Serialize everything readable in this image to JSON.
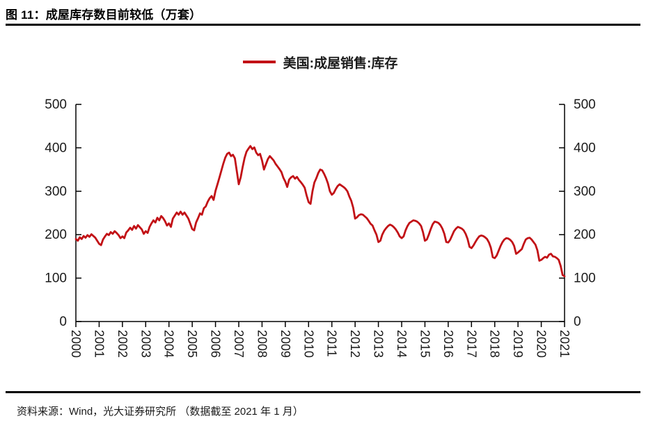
{
  "figure": {
    "title": "图 11：成屋库存数目前较低（万套）",
    "source_note": "资料来源：Wind，光大证券研究所  （数据截至 2021 年 1 月）"
  },
  "legend": {
    "label": "美国:成屋销售:库存",
    "color": "#c21116"
  },
  "colors": {
    "series_red": "#c21116",
    "axis": "#000000",
    "tick_text": "#1a1a1a"
  },
  "chart_data": {
    "type": "line",
    "title": "美国:成屋销售:库存",
    "xlabel": "",
    "ylabel": "",
    "ylim": [
      0,
      500
    ],
    "yticks": [
      0,
      100,
      200,
      300,
      400,
      500
    ],
    "y_axis_sides": "both",
    "grid": false,
    "legend_position": "top-center",
    "x_tick_labels": [
      "2000",
      "2001",
      "2002",
      "2003",
      "2004",
      "2005",
      "2006",
      "2007",
      "2008",
      "2009",
      "2010",
      "2011",
      "2012",
      "2013",
      "2014",
      "2015",
      "2016",
      "2017",
      "2018",
      "2019",
      "2020",
      "2021"
    ],
    "x_start": "2000-01",
    "x_end": "2021-01",
    "frequency": "monthly",
    "unit": "万套",
    "series": [
      {
        "name": "美国:成屋销售:库存",
        "color": "#c21116",
        "values": [
          190,
          186,
          194,
          190,
          197,
          193,
          199,
          195,
          201,
          197,
          193,
          186,
          179,
          176,
          189,
          196,
          202,
          199,
          206,
          202,
          208,
          204,
          199,
          192,
          196,
          192,
          205,
          210,
          216,
          211,
          220,
          214,
          222,
          217,
          212,
          202,
          208,
          204,
          218,
          226,
          233,
          228,
          239,
          233,
          243,
          238,
          231,
          221,
          226,
          218,
          237,
          244,
          251,
          246,
          253,
          246,
          251,
          244,
          237,
          225,
          213,
          210,
          228,
          238,
          249,
          246,
          261,
          265,
          276,
          284,
          289,
          280,
          301,
          316,
          331,
          347,
          363,
          377,
          386,
          389,
          381,
          384,
          376,
          346,
          316,
          332,
          356,
          377,
          391,
          398,
          404,
          397,
          401,
          389,
          383,
          386,
          371,
          350,
          362,
          374,
          381,
          376,
          371,
          363,
          357,
          351,
          344,
          331,
          322,
          310,
          327,
          332,
          335,
          329,
          333,
          326,
          321,
          315,
          308,
          290,
          275,
          271,
          300,
          320,
          330,
          342,
          350,
          348,
          340,
          330,
          318,
          300,
          292,
          296,
          305,
          312,
          316,
          313,
          310,
          306,
          300,
          288,
          278,
          262,
          237,
          240,
          245,
          247,
          246,
          242,
          238,
          232,
          225,
          221,
          210,
          200,
          183,
          186,
          200,
          209,
          215,
          220,
          223,
          221,
          217,
          212,
          205,
          196,
          192,
          196,
          210,
          220,
          227,
          230,
          233,
          232,
          230,
          226,
          220,
          206,
          186,
          189,
          200,
          213,
          224,
          230,
          229,
          227,
          222,
          214,
          202,
          183,
          182,
          188,
          198,
          208,
          214,
          218,
          216,
          214,
          210,
          202,
          190,
          172,
          169,
          175,
          183,
          190,
          196,
          198,
          197,
          194,
          190,
          182,
          170,
          148,
          146,
          152,
          163,
          174,
          183,
          189,
          192,
          191,
          188,
          183,
          174,
          156,
          159,
          163,
          167,
          179,
          189,
          192,
          193,
          189,
          183,
          177,
          164,
          140,
          142,
          146,
          149,
          147,
          154,
          156,
          150,
          149,
          146,
          142,
          128,
          107,
          104
        ]
      }
    ]
  }
}
